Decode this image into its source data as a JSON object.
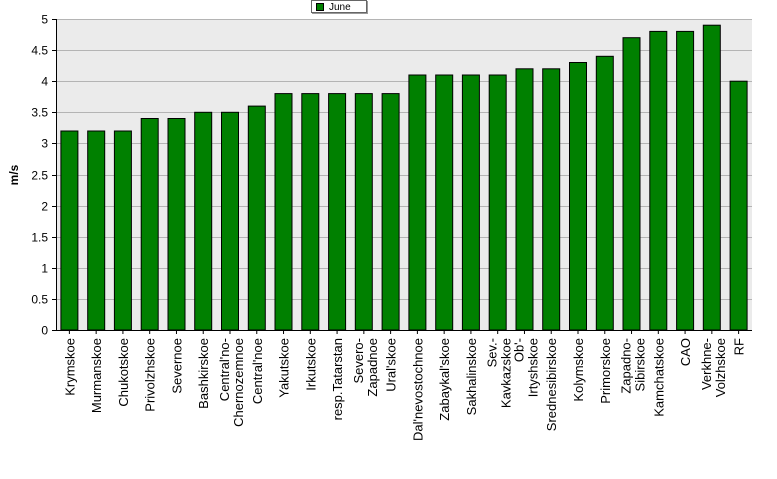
{
  "chart_data": {
    "type": "bar",
    "ylabel": "m/s",
    "ylim": [
      0,
      5
    ],
    "yticks": [
      "0",
      "0.5",
      "1",
      "1.5",
      "2",
      "2.5",
      "3",
      "3.5",
      "4",
      "4.5",
      "5"
    ],
    "grid": true,
    "legend_position": "top-center",
    "bar_color": "#008000",
    "plot_background": "#ebebeb",
    "categories": [
      "Krymskoe",
      "Murmanskoe",
      "Chukotskoe",
      "Privolzhskoe",
      "Severnoe",
      "Bashkirskoe",
      "Central'no-\nChernozemnoe",
      "Central'noe",
      "Yakutskoe",
      "Irkutskoe",
      "resp.Tatarstan",
      "Severo-\nZapadnoe",
      "Ural'skoe",
      "Dal'nevostochnoe",
      "Zabaykal'skoe",
      "Sakhalinskoe",
      "Sev.-\nKavkazskoe",
      "Ob'-\nIrtyshskoe",
      "Srednesibirskoe",
      "Kolymskoe",
      "Primorskoe",
      "Zapadno-\nSibirskoe",
      "Kamchatskoe",
      "CAO",
      "Verkhne-\nVolzhskoe",
      "RF"
    ],
    "series": [
      {
        "name": "June",
        "values": [
          3.2,
          3.2,
          3.2,
          3.4,
          3.4,
          3.5,
          3.5,
          3.6,
          3.8,
          3.8,
          3.8,
          3.8,
          3.8,
          4.1,
          4.1,
          4.1,
          4.1,
          4.2,
          4.2,
          4.3,
          4.4,
          4.7,
          4.8,
          4.8,
          4.9,
          4.0
        ]
      }
    ]
  }
}
